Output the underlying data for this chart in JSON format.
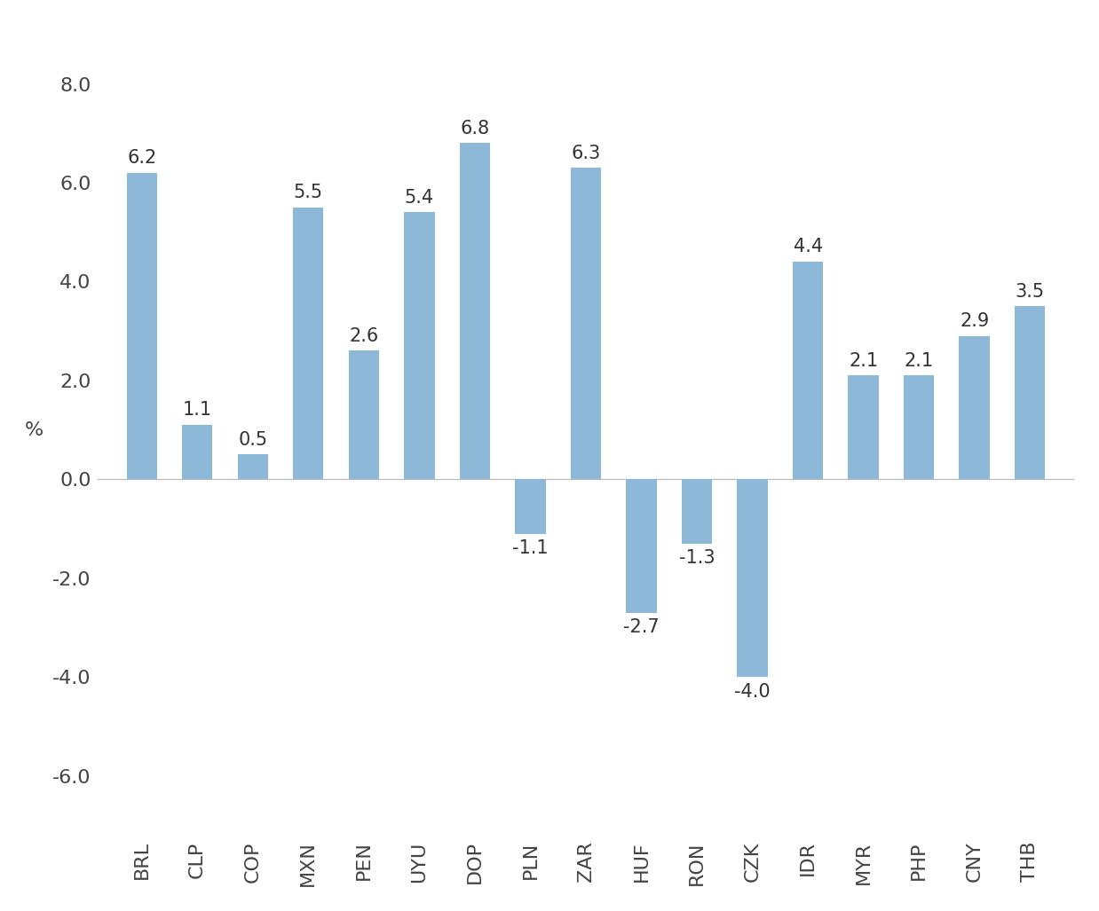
{
  "categories": [
    "BRL",
    "CLP",
    "COP",
    "MXN",
    "PEN",
    "UYU",
    "DOP",
    "PLN",
    "ZAR",
    "HUF",
    "RON",
    "CZK",
    "IDR",
    "MYR",
    "PHP",
    "CNY",
    "THB"
  ],
  "values": [
    6.2,
    1.1,
    0.5,
    5.5,
    2.6,
    5.4,
    6.8,
    -1.1,
    6.3,
    -2.7,
    -1.3,
    -4.0,
    4.4,
    2.1,
    2.1,
    2.9,
    3.5
  ],
  "bar_color": "#8db8d8",
  "ylabel": "%",
  "ylim": [
    -7.2,
    9.2
  ],
  "yticks": [
    -6.0,
    -4.0,
    -2.0,
    0.0,
    2.0,
    4.0,
    6.0,
    8.0
  ],
  "background_color": "#ffffff",
  "label_fontsize": 15,
  "tick_fontsize": 16,
  "ylabel_fontsize": 16,
  "bar_width": 0.55
}
